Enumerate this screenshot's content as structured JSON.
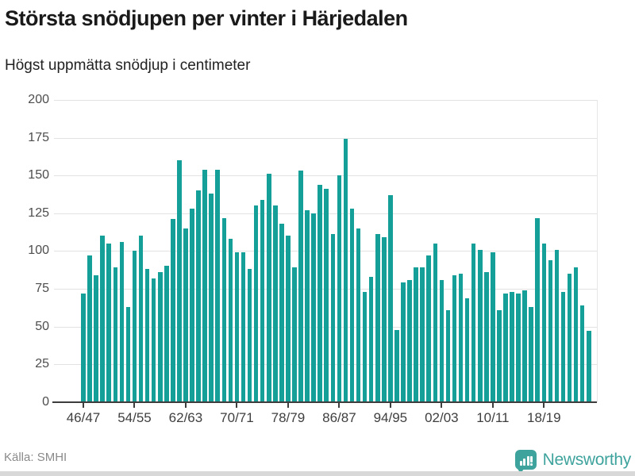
{
  "title": "Största snödjupen per vinter i Härjedalen",
  "subtitle": "Högst uppmätta snödjup i centimeter",
  "source": "Källa: SMHI",
  "brand": {
    "name": "Newsworthy",
    "icon": "bar-chart-bubble-icon",
    "color": "#3fa39d"
  },
  "colors": {
    "bar": "#14a099",
    "grid": "#e2e2e2",
    "axis": "#3d3d3d",
    "tick_label": "#4d4d4d",
    "title": "#1a1a1a",
    "source_text": "#8a8a8a",
    "bottom_strip": "#d8d8d8"
  },
  "chart_data": {
    "type": "bar",
    "title": "Största snödjupen per vinter i Härjedalen",
    "subtitle": "Högst uppmätta snödjup i centimeter",
    "unit": "centimeter",
    "ylim": [
      0,
      200
    ],
    "yticks": [
      0,
      25,
      50,
      75,
      100,
      125,
      150,
      175,
      200
    ],
    "grid": true,
    "legend_position": "none",
    "categories": [
      "46/47",
      "47/48",
      "48/49",
      "49/50",
      "50/51",
      "51/52",
      "52/53",
      "53/54",
      "54/55",
      "55/56",
      "56/57",
      "57/58",
      "58/59",
      "59/60",
      "60/61",
      "61/62",
      "62/63",
      "63/64",
      "64/65",
      "65/66",
      "66/67",
      "67/68",
      "68/69",
      "69/70",
      "70/71",
      "71/72",
      "72/73",
      "73/74",
      "74/75",
      "75/76",
      "76/77",
      "77/78",
      "78/79",
      "79/80",
      "80/81",
      "81/82",
      "82/83",
      "83/84",
      "84/85",
      "85/86",
      "86/87",
      "87/88",
      "88/89",
      "89/90",
      "90/91",
      "91/92",
      "92/93",
      "93/94",
      "94/95",
      "95/96",
      "96/97",
      "97/98",
      "98/99",
      "99/00",
      "00/01",
      "01/02",
      "02/03",
      "03/04",
      "04/05",
      "05/06",
      "06/07",
      "07/08",
      "08/09",
      "09/10",
      "10/11",
      "11/12",
      "12/13",
      "13/14",
      "14/15",
      "15/16",
      "16/17",
      "17/18",
      "18/19",
      "19/20",
      "20/21",
      "21/22",
      "22/23",
      "23/24",
      "24/25",
      "25/26"
    ],
    "values": [
      72,
      97,
      84,
      110,
      105,
      89,
      106,
      63,
      100,
      110,
      88,
      82,
      86,
      90,
      121,
      160,
      115,
      128,
      140,
      154,
      138,
      154,
      122,
      108,
      99,
      99,
      88,
      130,
      134,
      151,
      130,
      118,
      110,
      89,
      153,
      127,
      125,
      144,
      141,
      111,
      150,
      174,
      128,
      115,
      73,
      83,
      111,
      109,
      137,
      48,
      79,
      81,
      89,
      89,
      97,
      105,
      81,
      61,
      84,
      85,
      69,
      105,
      101,
      86,
      99,
      61,
      72,
      73,
      72,
      74,
      63,
      122,
      105,
      94,
      101,
      73,
      85,
      89,
      64,
      47
    ],
    "xtick_indices": [
      0,
      8,
      16,
      24,
      32,
      40,
      48,
      56,
      64,
      72
    ],
    "xtick_labels": [
      "46/47",
      "54/55",
      "62/63",
      "70/71",
      "78/79",
      "86/87",
      "94/95",
      "02/03",
      "10/11",
      "18/19"
    ]
  }
}
